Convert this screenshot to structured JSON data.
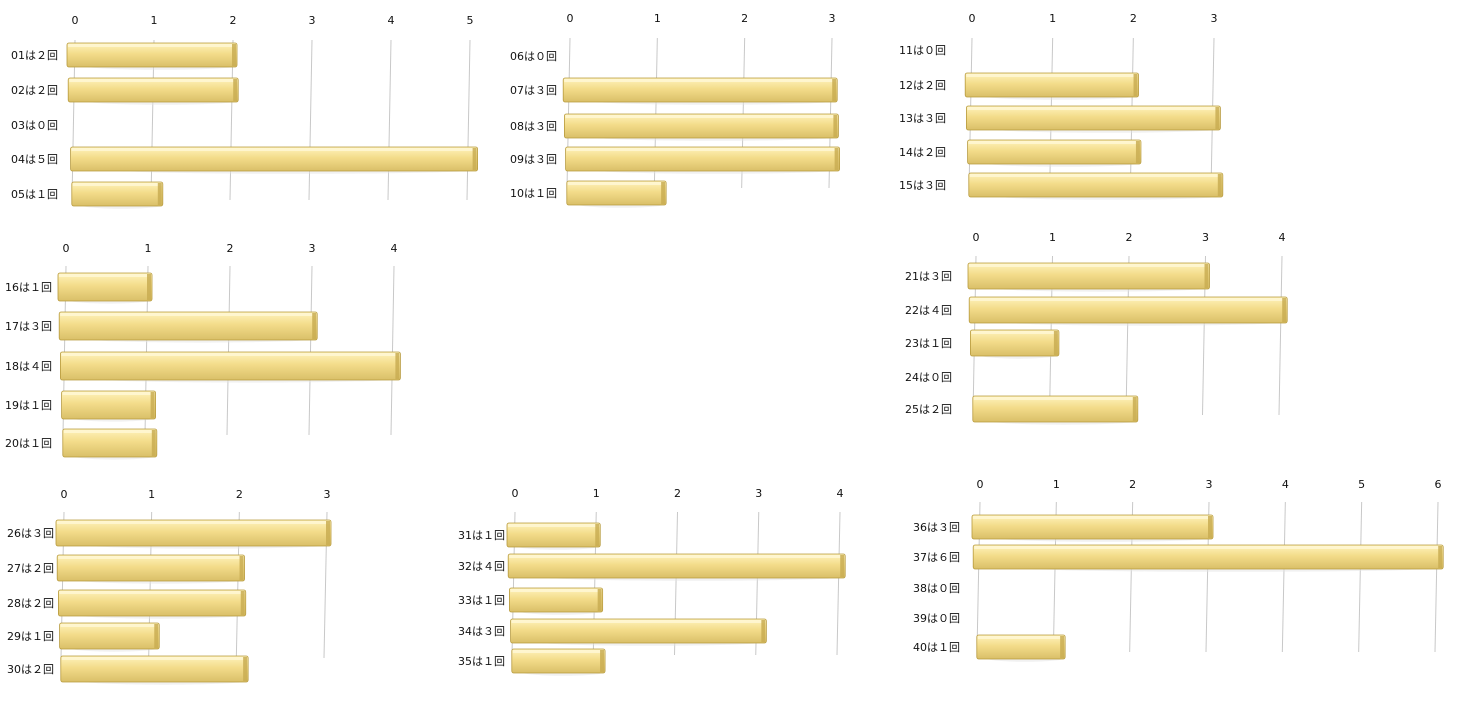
{
  "colors": {
    "bar": "#f3dc8a",
    "bar_top": "#fff3bd",
    "bar_edge": "#b79a3d",
    "grid": "#c8c8c8",
    "shadow": "#e3e3e3"
  },
  "chart_data": [
    {
      "type": "bar",
      "orientation": "horizontal",
      "categories": [
        "01は２回",
        "02は２回",
        "03は０回",
        "04は５回",
        "05は１回"
      ],
      "values": [
        2,
        2,
        0,
        5,
        1
      ],
      "xlim": [
        0,
        5
      ],
      "ticks": [
        0,
        1,
        2,
        3,
        4,
        5
      ],
      "grid": true
    },
    {
      "type": "bar",
      "orientation": "horizontal",
      "categories": [
        "06は０回",
        "07は３回",
        "08は３回",
        "09は３回",
        "10は１回"
      ],
      "values": [
        0,
        3,
        3,
        3,
        1
      ],
      "xlim": [
        0,
        3
      ],
      "ticks": [
        0,
        1,
        2,
        3
      ],
      "grid": true
    },
    {
      "type": "bar",
      "orientation": "horizontal",
      "categories": [
        "11は０回",
        "12は２回",
        "13は３回",
        "14は２回",
        "15は３回"
      ],
      "values": [
        0,
        2,
        3,
        2,
        3
      ],
      "xlim": [
        0,
        3
      ],
      "ticks": [
        0,
        1,
        2,
        3
      ],
      "grid": true
    },
    {
      "type": "bar",
      "orientation": "horizontal",
      "categories": [
        "16は１回",
        "17は３回",
        "18は４回",
        "19は１回",
        "20は１回"
      ],
      "values": [
        1,
        3,
        4,
        1,
        1
      ],
      "xlim": [
        0,
        4
      ],
      "ticks": [
        0,
        1,
        2,
        3,
        4
      ],
      "grid": true
    },
    {
      "type": "bar",
      "orientation": "horizontal",
      "categories": [
        "21は３回",
        "22は４回",
        "23は１回",
        "24は０回",
        "25は２回"
      ],
      "values": [
        3,
        4,
        1,
        0,
        2
      ],
      "xlim": [
        0,
        4
      ],
      "ticks": [
        0,
        1,
        2,
        3,
        4
      ],
      "grid": true
    },
    {
      "type": "bar",
      "orientation": "horizontal",
      "categories": [
        "26は３回",
        "27は２回",
        "28は２回",
        "29は１回",
        "30は２回"
      ],
      "values": [
        3,
        2,
        2,
        1,
        2
      ],
      "xlim": [
        0,
        3
      ],
      "ticks": [
        0,
        1,
        2,
        3
      ],
      "grid": true
    },
    {
      "type": "bar",
      "orientation": "horizontal",
      "categories": [
        "31は１回",
        "32は４回",
        "33は１回",
        "34は３回",
        "35は１回"
      ],
      "values": [
        1,
        4,
        1,
        3,
        1
      ],
      "xlim": [
        0,
        4
      ],
      "ticks": [
        0,
        1,
        2,
        3,
        4
      ],
      "grid": true
    },
    {
      "type": "bar",
      "orientation": "horizontal",
      "categories": [
        "36は３回",
        "37は６回",
        "38は０回",
        "39は０回",
        "40は１回"
      ],
      "values": [
        3,
        6,
        0,
        0,
        1
      ],
      "xlim": [
        0,
        6
      ],
      "ticks": [
        0,
        1,
        2,
        3,
        4,
        5,
        6
      ],
      "grid": true
    }
  ]
}
